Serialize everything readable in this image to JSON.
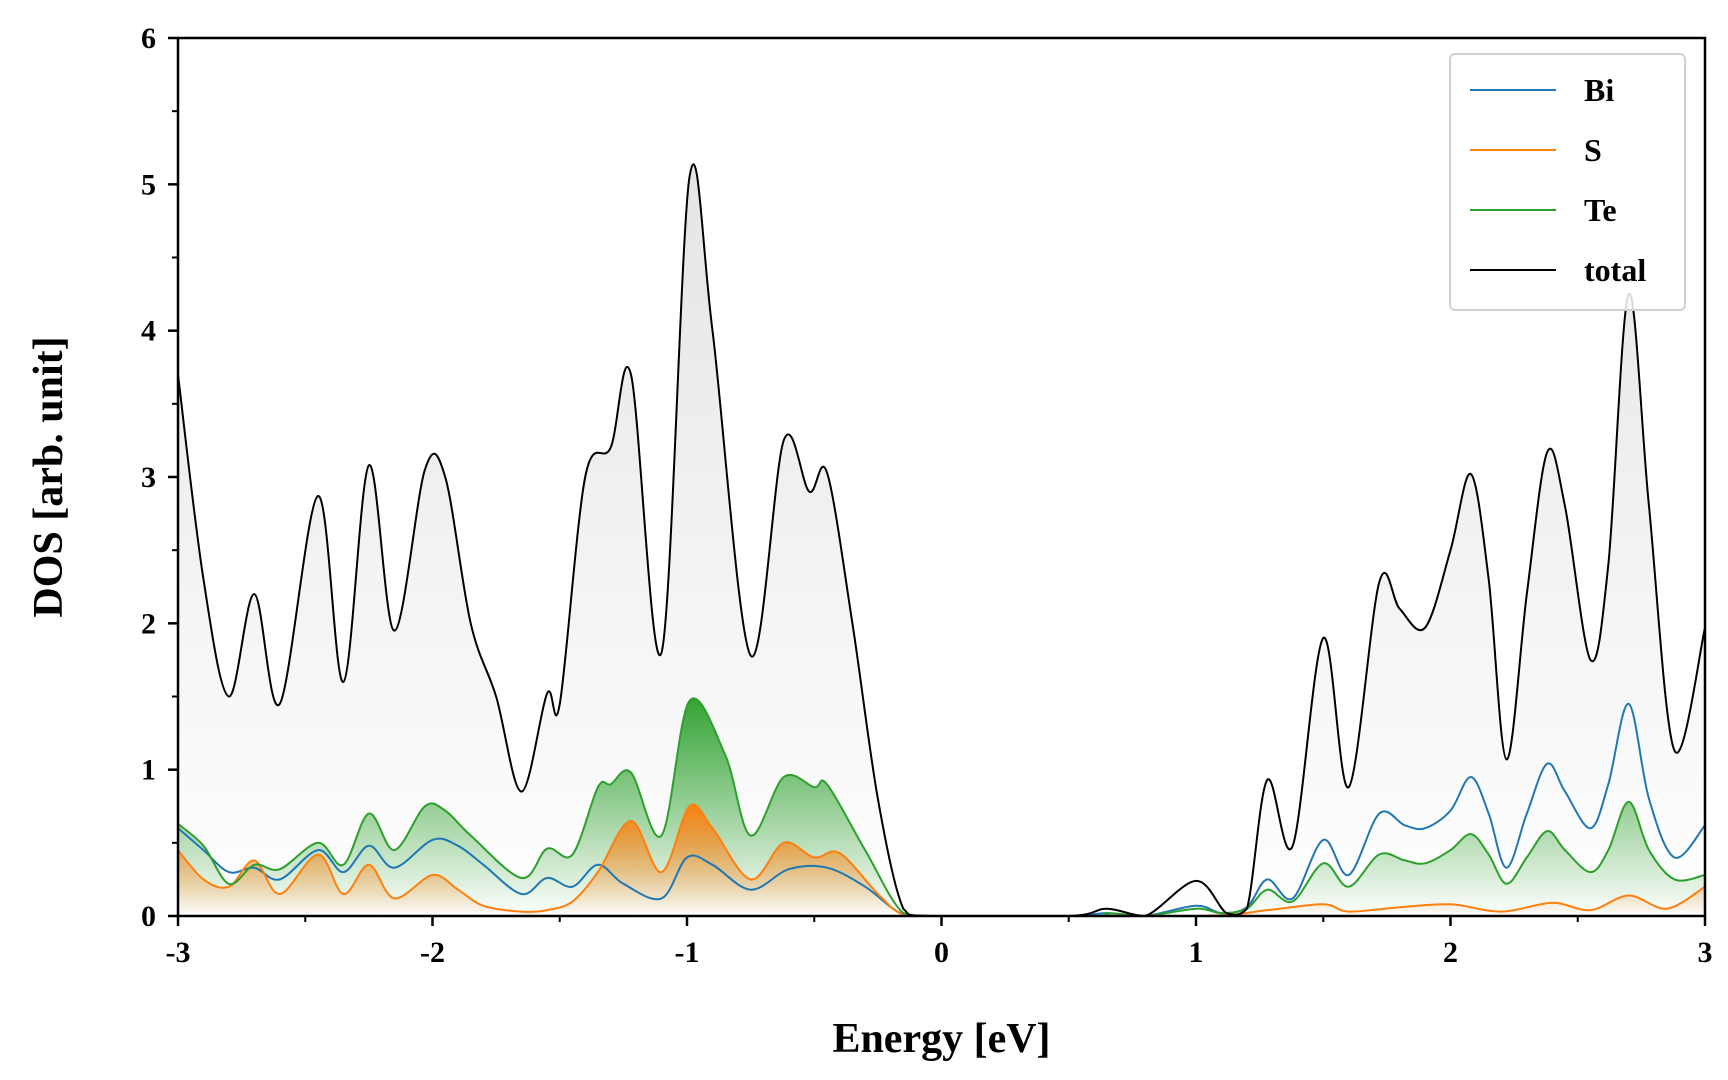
{
  "chart_data": {
    "type": "area",
    "title": "",
    "xlabel": "Energy [eV]",
    "ylabel": "DOS [arb. unit]",
    "xlim": [
      -3,
      3
    ],
    "ylim": [
      0,
      6
    ],
    "x_ticks": [
      -3,
      -2,
      -1,
      0,
      1,
      2,
      3
    ],
    "x_tick_labels": [
      "-3",
      "-2",
      "-1",
      "0",
      "1",
      "2",
      "3"
    ],
    "y_ticks": [
      0,
      1,
      2,
      3,
      4,
      5,
      6
    ],
    "y_tick_labels": [
      "0",
      "1",
      "2",
      "3",
      "4",
      "5",
      "6"
    ],
    "grid": false,
    "legend_position": "top-right",
    "series": [
      {
        "name": "Bi",
        "color": "#1f77b4",
        "filled": false,
        "points": [
          [
            -3.0,
            0.6
          ],
          [
            -2.9,
            0.45
          ],
          [
            -2.8,
            0.3
          ],
          [
            -2.7,
            0.33
          ],
          [
            -2.6,
            0.25
          ],
          [
            -2.45,
            0.45
          ],
          [
            -2.35,
            0.3
          ],
          [
            -2.25,
            0.48
          ],
          [
            -2.15,
            0.33
          ],
          [
            -2.0,
            0.52
          ],
          [
            -1.9,
            0.48
          ],
          [
            -1.8,
            0.35
          ],
          [
            -1.65,
            0.15
          ],
          [
            -1.55,
            0.26
          ],
          [
            -1.45,
            0.2
          ],
          [
            -1.35,
            0.35
          ],
          [
            -1.25,
            0.22
          ],
          [
            -1.1,
            0.12
          ],
          [
            -1.0,
            0.4
          ],
          [
            -0.9,
            0.35
          ],
          [
            -0.75,
            0.18
          ],
          [
            -0.6,
            0.32
          ],
          [
            -0.45,
            0.33
          ],
          [
            -0.3,
            0.2
          ],
          [
            -0.15,
            0.01
          ],
          [
            0.0,
            0.0
          ],
          [
            0.5,
            0.0
          ],
          [
            0.65,
            0.02
          ],
          [
            0.8,
            0.0
          ],
          [
            1.0,
            0.07
          ],
          [
            1.1,
            0.02
          ],
          [
            1.2,
            0.06
          ],
          [
            1.28,
            0.25
          ],
          [
            1.38,
            0.12
          ],
          [
            1.5,
            0.52
          ],
          [
            1.6,
            0.28
          ],
          [
            1.72,
            0.7
          ],
          [
            1.82,
            0.62
          ],
          [
            1.9,
            0.6
          ],
          [
            2.0,
            0.72
          ],
          [
            2.08,
            0.95
          ],
          [
            2.15,
            0.7
          ],
          [
            2.22,
            0.33
          ],
          [
            2.3,
            0.7
          ],
          [
            2.38,
            1.04
          ],
          [
            2.45,
            0.85
          ],
          [
            2.55,
            0.6
          ],
          [
            2.62,
            0.9
          ],
          [
            2.7,
            1.45
          ],
          [
            2.78,
            0.8
          ],
          [
            2.88,
            0.4
          ],
          [
            3.0,
            0.62
          ]
        ]
      },
      {
        "name": "S",
        "color": "#ff7f0e",
        "filled": true,
        "points": [
          [
            -3.0,
            0.45
          ],
          [
            -2.9,
            0.25
          ],
          [
            -2.8,
            0.2
          ],
          [
            -2.7,
            0.38
          ],
          [
            -2.6,
            0.15
          ],
          [
            -2.45,
            0.42
          ],
          [
            -2.35,
            0.15
          ],
          [
            -2.25,
            0.35
          ],
          [
            -2.15,
            0.12
          ],
          [
            -2.0,
            0.28
          ],
          [
            -1.9,
            0.18
          ],
          [
            -1.8,
            0.07
          ],
          [
            -1.65,
            0.03
          ],
          [
            -1.55,
            0.04
          ],
          [
            -1.45,
            0.1
          ],
          [
            -1.35,
            0.3
          ],
          [
            -1.22,
            0.65
          ],
          [
            -1.1,
            0.3
          ],
          [
            -0.99,
            0.75
          ],
          [
            -0.9,
            0.6
          ],
          [
            -0.75,
            0.25
          ],
          [
            -0.62,
            0.5
          ],
          [
            -0.5,
            0.4
          ],
          [
            -0.4,
            0.43
          ],
          [
            -0.25,
            0.15
          ],
          [
            -0.15,
            0.01
          ],
          [
            0.0,
            0.0
          ],
          [
            1.0,
            0.0
          ],
          [
            1.28,
            0.04
          ],
          [
            1.5,
            0.08
          ],
          [
            1.6,
            0.03
          ],
          [
            1.8,
            0.06
          ],
          [
            2.0,
            0.08
          ],
          [
            2.2,
            0.03
          ],
          [
            2.4,
            0.09
          ],
          [
            2.55,
            0.04
          ],
          [
            2.7,
            0.14
          ],
          [
            2.85,
            0.05
          ],
          [
            3.0,
            0.2
          ]
        ]
      },
      {
        "name": "Te",
        "color": "#2ca02c",
        "filled": true,
        "points": [
          [
            -3.0,
            0.63
          ],
          [
            -2.9,
            0.48
          ],
          [
            -2.8,
            0.22
          ],
          [
            -2.7,
            0.35
          ],
          [
            -2.6,
            0.32
          ],
          [
            -2.45,
            0.5
          ],
          [
            -2.35,
            0.35
          ],
          [
            -2.25,
            0.7
          ],
          [
            -2.15,
            0.45
          ],
          [
            -2.03,
            0.75
          ],
          [
            -1.95,
            0.72
          ],
          [
            -1.85,
            0.55
          ],
          [
            -1.65,
            0.26
          ],
          [
            -1.55,
            0.46
          ],
          [
            -1.45,
            0.42
          ],
          [
            -1.35,
            0.88
          ],
          [
            -1.3,
            0.9
          ],
          [
            -1.22,
            0.98
          ],
          [
            -1.1,
            0.55
          ],
          [
            -0.99,
            1.47
          ],
          [
            -0.85,
            1.1
          ],
          [
            -0.75,
            0.55
          ],
          [
            -0.62,
            0.95
          ],
          [
            -0.5,
            0.88
          ],
          [
            -0.45,
            0.9
          ],
          [
            -0.3,
            0.45
          ],
          [
            -0.15,
            0.02
          ],
          [
            0.0,
            0.0
          ],
          [
            0.6,
            0.0
          ],
          [
            0.65,
            0.02
          ],
          [
            0.8,
            0.0
          ],
          [
            1.0,
            0.05
          ],
          [
            1.1,
            0.02
          ],
          [
            1.2,
            0.05
          ],
          [
            1.28,
            0.18
          ],
          [
            1.38,
            0.1
          ],
          [
            1.5,
            0.36
          ],
          [
            1.6,
            0.2
          ],
          [
            1.72,
            0.42
          ],
          [
            1.82,
            0.38
          ],
          [
            1.9,
            0.36
          ],
          [
            2.0,
            0.45
          ],
          [
            2.08,
            0.56
          ],
          [
            2.15,
            0.42
          ],
          [
            2.22,
            0.22
          ],
          [
            2.3,
            0.4
          ],
          [
            2.38,
            0.58
          ],
          [
            2.45,
            0.45
          ],
          [
            2.55,
            0.3
          ],
          [
            2.62,
            0.45
          ],
          [
            2.7,
            0.78
          ],
          [
            2.78,
            0.45
          ],
          [
            2.88,
            0.25
          ],
          [
            3.0,
            0.28
          ]
        ]
      },
      {
        "name": "total",
        "color": "#000000",
        "filled": true,
        "points": [
          [
            -3.0,
            3.7
          ],
          [
            -2.9,
            2.3
          ],
          [
            -2.8,
            1.5
          ],
          [
            -2.7,
            2.2
          ],
          [
            -2.6,
            1.45
          ],
          [
            -2.45,
            2.87
          ],
          [
            -2.35,
            1.6
          ],
          [
            -2.25,
            3.08
          ],
          [
            -2.15,
            1.95
          ],
          [
            -2.03,
            3.05
          ],
          [
            -1.95,
            3.0
          ],
          [
            -1.85,
            2.0
          ],
          [
            -1.75,
            1.5
          ],
          [
            -1.65,
            0.85
          ],
          [
            -1.55,
            1.52
          ],
          [
            -1.5,
            1.45
          ],
          [
            -1.4,
            3.0
          ],
          [
            -1.3,
            3.2
          ],
          [
            -1.22,
            3.7
          ],
          [
            -1.1,
            1.8
          ],
          [
            -0.99,
            5.05
          ],
          [
            -0.9,
            4.0
          ],
          [
            -0.75,
            1.78
          ],
          [
            -0.62,
            3.25
          ],
          [
            -0.52,
            2.9
          ],
          [
            -0.45,
            3.03
          ],
          [
            -0.35,
            2.0
          ],
          [
            -0.25,
            0.8
          ],
          [
            -0.15,
            0.05
          ],
          [
            -0.05,
            0.0
          ],
          [
            0.5,
            0.0
          ],
          [
            0.65,
            0.05
          ],
          [
            0.8,
            0.0
          ],
          [
            1.0,
            0.24
          ],
          [
            1.12,
            0.02
          ],
          [
            1.2,
            0.05
          ],
          [
            1.28,
            0.93
          ],
          [
            1.38,
            0.48
          ],
          [
            1.5,
            1.9
          ],
          [
            1.6,
            0.88
          ],
          [
            1.72,
            2.28
          ],
          [
            1.8,
            2.1
          ],
          [
            1.9,
            1.97
          ],
          [
            2.0,
            2.5
          ],
          [
            2.08,
            3.02
          ],
          [
            2.15,
            2.3
          ],
          [
            2.22,
            1.07
          ],
          [
            2.3,
            2.2
          ],
          [
            2.38,
            3.17
          ],
          [
            2.45,
            2.8
          ],
          [
            2.55,
            1.75
          ],
          [
            2.62,
            2.4
          ],
          [
            2.7,
            4.25
          ],
          [
            2.78,
            2.8
          ],
          [
            2.88,
            1.13
          ],
          [
            3.0,
            1.97
          ]
        ]
      }
    ]
  }
}
